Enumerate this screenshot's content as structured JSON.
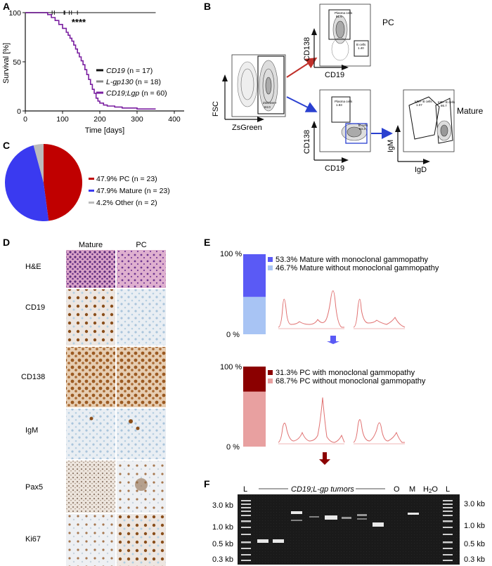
{
  "panels": {
    "A": "A",
    "B": "B",
    "C": "C",
    "D": "D",
    "E": "E",
    "F": "F"
  },
  "panel_a": {
    "ylabel": "Survival [%]",
    "xlabel": "Time [days]",
    "significance": "****",
    "y_ticks": [
      "0",
      "50",
      "100"
    ],
    "x_ticks": [
      "0",
      "100",
      "200",
      "300",
      "400"
    ],
    "legend": [
      {
        "label_italic": "CD19",
        "label_rest": " (n = 17)",
        "color": "#111111"
      },
      {
        "label_italic": "L-gp130",
        "label_rest": " (n = 18)",
        "color": "#888888"
      },
      {
        "label_italic": "CD19;Lgp",
        "label_rest": " (n = 60)",
        "color": "#7a1fa0"
      }
    ]
  },
  "chart_data": {
    "type": "line",
    "title": "",
    "xlabel": "Time [days]",
    "ylabel": "Survival [%]",
    "xlim": [
      0,
      400
    ],
    "ylim": [
      0,
      100
    ],
    "series": [
      {
        "name": "CD19 (n = 17)",
        "color": "#111111",
        "x": [
          0,
          350
        ],
        "y": [
          100,
          100
        ]
      },
      {
        "name": "L-gp130 (n = 18)",
        "color": "#888888",
        "x": [
          0,
          350
        ],
        "y": [
          100,
          100
        ]
      },
      {
        "name": "CD19;Lgp (n = 60)",
        "color": "#7a1fa0",
        "x": [
          0,
          50,
          60,
          70,
          80,
          90,
          100,
          110,
          115,
          120,
          125,
          130,
          135,
          140,
          145,
          150,
          155,
          160,
          165,
          170,
          175,
          180,
          185,
          190,
          195,
          200,
          210,
          220,
          240,
          260,
          300,
          350
        ],
        "y": [
          100,
          100,
          98,
          95,
          92,
          88,
          84,
          80,
          77,
          74,
          71,
          67,
          63,
          59,
          55,
          51,
          47,
          42,
          37,
          32,
          27,
          22,
          18,
          13,
          10,
          8,
          6,
          5,
          4,
          3,
          2,
          2
        ]
      }
    ]
  },
  "panel_b": {
    "fsc": "FSC",
    "zsgreen": "ZsGreen",
    "gate_zs": "ZsGreen+",
    "gate_zs_val": "84.0",
    "cd138": "CD138",
    "cd19": "CD19",
    "pc_label": "PC",
    "mature_label": "Mature",
    "plasma_gate": "Plasma cells",
    "plasma_val_top": "81.6",
    "b_gate": "B cells",
    "b_val_top": "1.40",
    "plasma_val_bottom": "1.83",
    "b_val_bottom": "83.3",
    "igm": "IgM",
    "igd": "IgD",
    "igm_gate": "IgM+ B cells",
    "igm_val": "1.07",
    "igd_gate": "IgD+ B cells",
    "igd_val": "86.7"
  },
  "panel_c": {
    "chart_data_note": "",
    "slices": [
      {
        "label": "47.9% PC (n = 23)",
        "value": 47.9,
        "color": "#c00000"
      },
      {
        "label": "47.9% Mature (n = 23)",
        "value": 47.9,
        "color": "#3a3af0"
      },
      {
        "label": "4.2% Other (n = 2)",
        "value": 4.2,
        "color": "#bbbbbb"
      }
    ]
  },
  "panel_d": {
    "col_mature": "Mature",
    "col_pc": "PC",
    "rows": [
      "H&E",
      "CD19",
      "CD138",
      "IgM",
      "Pax5",
      "Ki67"
    ]
  },
  "panel_e": {
    "top": {
      "y100": "100 %",
      "y0": "0 %",
      "with_pct": 53.3,
      "with_label": "53.3% Mature with monoclonal gammopathy",
      "without_label": "46.7% Mature without monoclonal gammopathy",
      "color_with": "#5a5af5",
      "color_without": "#a8c4f4"
    },
    "bottom": {
      "y100": "100 %",
      "y0": "0 %",
      "with_pct": 31.3,
      "with_label": "31.3% PC with monoclonal gammopathy",
      "without_label": "68.7% PC without monoclonal gammopathy",
      "color_with": "#8b0000",
      "color_without": "#e8a0a0"
    }
  },
  "panel_f": {
    "lane_L": "L",
    "tumors_label": "CD19;L-gp tumors",
    "lane_O": "O",
    "lane_M": "M",
    "lane_H2O": "H2O",
    "lane_L2": "L",
    "left_sizes": [
      "3.0 kb",
      "1.0 kb",
      "0.5 kb",
      "0.3 kb"
    ],
    "right_sizes": [
      "3.0 kb",
      "1.0 kb",
      "0.5 kb",
      "0.3 kb"
    ]
  }
}
